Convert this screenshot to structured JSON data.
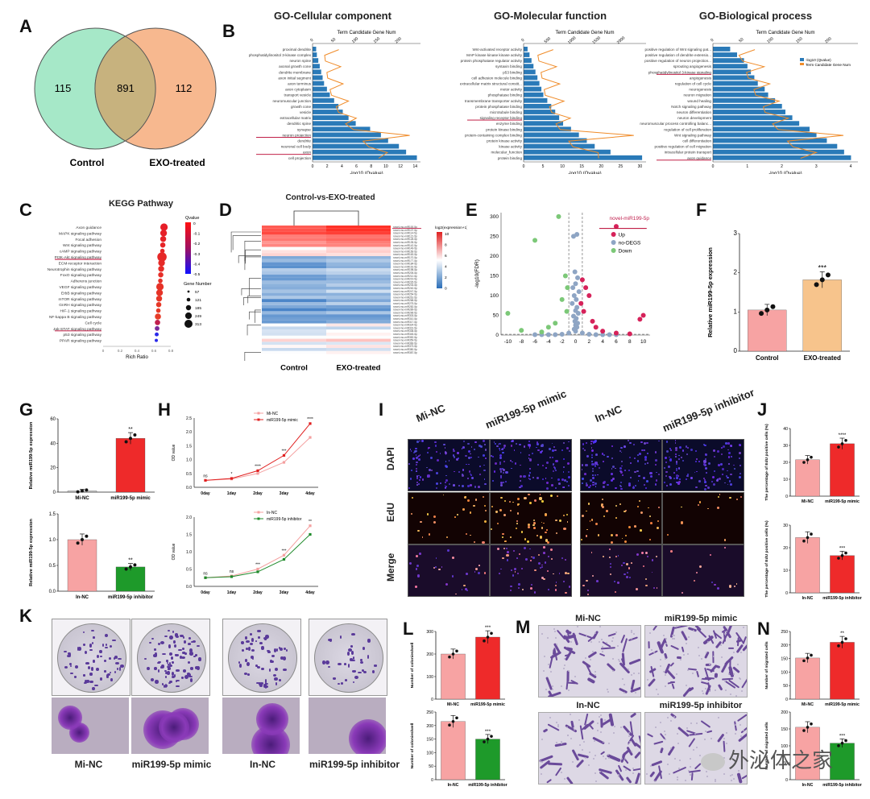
{
  "panels": {
    "A": "A",
    "B": "B",
    "C": "C",
    "D": "D",
    "E": "E",
    "F": "F",
    "G": "G",
    "H": "H",
    "I": "I",
    "J": "J",
    "K": "K",
    "L": "L",
    "M": "M",
    "N": "N"
  },
  "venn": {
    "left_count": "115",
    "overlap_count": "891",
    "right_count": "112",
    "left_label": "Control",
    "right_label": "EXO-treated",
    "left_color": "#a6e8c8",
    "right_color": "#f7b489"
  },
  "go": {
    "cc_title": "GO-Cellular component",
    "mf_title": "GO-Molecular function",
    "bp_title": "GO-Biological process",
    "top_axis_label": "Term Candidate Gene Num",
    "bottom_axis_label": "-log10  (Qvalue)",
    "legend_qvalue": "-log10 (Qvalue)",
    "legend_num": "Term Candidate Gene Num",
    "cc_terms": [
      "proximal dendrite",
      "phosphatidylinositol 3-kinase complex",
      "neuron spine",
      "axonal growth cone",
      "dendrite membrane",
      "axon initial segment",
      "axon terminus",
      "axon cytoplasm",
      "transport vesicle",
      "neuromuscular junction",
      "growth cone",
      "vesicle",
      "extracellular matrix",
      "dendritic spine",
      "synapse",
      "neuron projection",
      "dendrite",
      "neuronal cell body",
      "axon",
      "cell projection"
    ],
    "cc_q": [
      0.5,
      0.6,
      0.8,
      1,
      1.2,
      1.4,
      1.6,
      2,
      2.4,
      3,
      3.6,
      4.2,
      5,
      6,
      8,
      9.5,
      10.5,
      12,
      13,
      14.5
    ],
    "cc_top_ticks": [
      "0",
      "50",
      "100",
      "150",
      "200"
    ],
    "cc_bottom_ticks": [
      "0",
      "2",
      "4",
      "6",
      "8",
      "10",
      "12",
      "14"
    ],
    "mf_terms": [
      "Wnt-activated receptor activity",
      "MAP kinase kinase kinase activity",
      "protein phosphatase regulator activity",
      "syntaxin binding",
      "p53 binding",
      "cell adhesion molecule binding",
      "extracellular matrix structural constit...",
      "motor activity",
      "phosphatase binding",
      "transmembrane transporter activity",
      "protein phosphatase binding",
      "microtubule binding",
      "signaling receptor binding",
      "enzyme binding",
      "protein kinase binding",
      "protein-containing complex binding",
      "protein kinase activity",
      "kinase activity",
      "molecular_function",
      "protein binding"
    ],
    "mf_q": [
      1,
      1.5,
      2,
      2.5,
      3,
      3.5,
      4,
      4.5,
      5,
      6,
      7,
      8,
      9,
      10,
      12,
      14,
      16,
      18,
      22,
      30
    ],
    "mf_top_ticks": [
      "0",
      "500",
      "1000",
      "1500",
      "2000"
    ],
    "mf_bottom_ticks": [
      "0",
      "5",
      "10",
      "15",
      "20",
      "25",
      "30"
    ],
    "bp_terms": [
      "positive regulation of Wnt signaling pat...",
      "positive regulation of dendrite extensio...",
      "positive regulation of neuron projection...",
      "sprouting angiogenesis",
      "phosphatidylinositol 3-kinase signaling",
      "angiogenesis",
      "regulation of cell cycle",
      "neurogenesis",
      "neuron migration",
      "wound healing",
      "Notch signaling pathway",
      "neuron differentiation",
      "neuron development",
      "neuromuscular process controlling balanc...",
      "regulation of cell proliferation",
      "Wnt signaling pathway",
      "cell differentiation",
      "positive regulation of cell migration",
      "intracellular protein transport",
      "axon guidance"
    ],
    "bp_q": [
      0.5,
      0.7,
      0.9,
      1,
      1.1,
      1.2,
      1.3,
      1.5,
      1.6,
      1.8,
      2,
      2.1,
      2.3,
      2.5,
      2.8,
      3,
      3.3,
      3.6,
      3.8,
      4
    ],
    "bp_top_ticks": [
      "0",
      "50",
      "100",
      "150",
      "200"
    ],
    "bp_bottom_ticks": [
      "0",
      "1",
      "2",
      "3",
      "4"
    ]
  },
  "kegg": {
    "title": "KEGG Pathway",
    "xlabel": "Rich Ratio",
    "legend_q": "Qvalue",
    "legend_gene": "Gene Number",
    "q_ticks": [
      "0",
      "-0.1",
      "-0.2",
      "-0.3",
      "-0.4",
      "-0.5"
    ],
    "gene_ticks": [
      "57",
      "121",
      "185",
      "249",
      "313"
    ],
    "pathways": [
      "Axon guidance",
      "MAPK signaling pathway",
      "Focal adhesion",
      "Wnt signaling pathway",
      "cAMP signaling pathway",
      "PI3K-Akt signaling pathway",
      "ECM-receptor interaction",
      "Neurotrophin signaling pathway",
      "FoxO signaling pathway",
      "Adherens junction",
      "VEGF signaling pathway",
      "ErbB signaling pathway",
      "mTOR signaling pathway",
      "GnRH signaling pathway",
      "HIF-1 signaling pathway",
      "NF-kappa B signaling pathway",
      "Cell cycle",
      "Jak-STAT signaling pathway",
      "p53 signaling pathway",
      "PPAR signaling pathway"
    ],
    "x_ticks": [
      "0",
      "0.2",
      "0.4",
      "0.6",
      "0.8"
    ]
  },
  "heatmap": {
    "title": "Control-vs-EXO-treated",
    "legend_title": "log2(expression+1)",
    "scale": [
      "10",
      "8",
      "6",
      "4",
      "2",
      "0"
    ],
    "col_labels": [
      "Control",
      "EXO-treated"
    ]
  },
  "volcano": {
    "ylabel": "-log10(FDR)",
    "highlight": "novel-miR199-5p",
    "legend_up": "Up",
    "legend_no": "no-DEGS",
    "legend_down": "Down",
    "x_ticks": [
      "-10",
      "-8",
      "-6",
      "-4",
      "-2",
      "0",
      "2",
      "4",
      "6",
      "8",
      "10"
    ],
    "y_ticks": [
      "0",
      "50",
      "100",
      "150",
      "200",
      "250",
      "300"
    ]
  },
  "chart_data": [
    {
      "id": "F",
      "type": "bar",
      "categories": [
        "Control",
        "EXO-treated"
      ],
      "values": [
        1.05,
        1.82
      ],
      "ylabel": "Relative miR199-5p expression",
      "ylim": [
        0,
        3
      ],
      "significance": "***",
      "y_ticks": [
        "0",
        "1",
        "2",
        "3"
      ]
    },
    {
      "id": "G1",
      "type": "bar",
      "categories": [
        "Mi-NC",
        "miR199-5p mimic"
      ],
      "values": [
        1,
        44
      ],
      "ylabel": "Relative miR199-5p expression",
      "ylim": [
        0,
        60
      ],
      "significance": "**",
      "y_ticks": [
        "0",
        "20",
        "40",
        "60"
      ]
    },
    {
      "id": "G2",
      "type": "bar",
      "categories": [
        "In-NC",
        "miR199-5p inhibitor"
      ],
      "values": [
        1.0,
        0.47
      ],
      "ylabel": "Relative miR199-5p expression",
      "ylim": [
        0,
        1.5
      ],
      "significance": "**",
      "y_ticks": [
        "0.0",
        "0.5",
        "1.0",
        "1.5"
      ]
    },
    {
      "id": "H1",
      "type": "line",
      "x": [
        "0day",
        "1day",
        "2day",
        "3day",
        "4day"
      ],
      "series": [
        {
          "name": "Mi-NC",
          "values": [
            0.25,
            0.3,
            0.5,
            0.9,
            1.8
          ]
        },
        {
          "name": "miR199-5p mimic",
          "values": [
            0.25,
            0.32,
            0.6,
            1.15,
            2.3
          ]
        }
      ],
      "ylabel": "OD value",
      "ylim": [
        0,
        2.5
      ],
      "y_ticks": [
        "0.0",
        "0.5",
        "1.0",
        "1.5",
        "2.0",
        "2.5"
      ],
      "annotations": [
        "ns",
        "*",
        "****",
        "***",
        "****"
      ]
    },
    {
      "id": "H2",
      "type": "line",
      "x": [
        "0day",
        "1day",
        "2day",
        "3day",
        "4day"
      ],
      "series": [
        {
          "name": "In-NC",
          "values": [
            0.25,
            0.3,
            0.5,
            0.9,
            1.75
          ]
        },
        {
          "name": "miR199-5p inhibitor",
          "values": [
            0.25,
            0.28,
            0.42,
            0.78,
            1.5
          ]
        }
      ],
      "ylabel": "OD value",
      "ylim": [
        0,
        2.0
      ],
      "y_ticks": [
        "0.0",
        "0.5",
        "1.0",
        "1.5",
        "2.0"
      ],
      "annotations": [
        "ns",
        "ns",
        "***",
        "***",
        "**"
      ]
    },
    {
      "id": "J1",
      "type": "bar",
      "categories": [
        "Mi-NC",
        "miR199-5p mimic"
      ],
      "values": [
        21.5,
        31
      ],
      "ylabel": "The percentage of EdU positive cells (%)",
      "ylim": [
        0,
        40
      ],
      "significance": "****",
      "y_ticks": [
        "0",
        "10",
        "20",
        "30",
        "40"
      ]
    },
    {
      "id": "J2",
      "type": "bar",
      "categories": [
        "In-NC",
        "miR199-5p inhibitor"
      ],
      "values": [
        24.5,
        16.5
      ],
      "ylabel": "The percentage of EdU positive cells (%)",
      "ylim": [
        0,
        30
      ],
      "significance": "***",
      "y_ticks": [
        "0",
        "10",
        "20",
        "30"
      ]
    },
    {
      "id": "L1",
      "type": "bar",
      "categories": [
        "Mi-NC",
        "miR199-5p mimic"
      ],
      "values": [
        200,
        275
      ],
      "ylabel": "Number of colonies/well",
      "ylim": [
        0,
        300
      ],
      "significance": "***",
      "y_ticks": [
        "0",
        "100",
        "200",
        "300"
      ]
    },
    {
      "id": "L2",
      "type": "bar",
      "categories": [
        "In-NC",
        "miR199-5p inhibitor"
      ],
      "values": [
        215,
        150
      ],
      "ylabel": "Number of colonies/well",
      "ylim": [
        0,
        250
      ],
      "significance": "***",
      "y_ticks": [
        "0",
        "50",
        "100",
        "150",
        "200",
        "250"
      ]
    },
    {
      "id": "N1",
      "type": "bar",
      "categories": [
        "Mi-NC",
        "miR199-5p mimic"
      ],
      "values": [
        152,
        210
      ],
      "ylabel": "Number of migrated cells",
      "ylim": [
        0,
        250
      ],
      "significance": "**",
      "y_ticks": [
        "0",
        "50",
        "100",
        "150",
        "200",
        "250"
      ]
    },
    {
      "id": "N2",
      "type": "bar",
      "categories": [
        "In-NC",
        "miR199-5p inhibitor"
      ],
      "values": [
        155,
        108
      ],
      "ylabel": "Number of migrated cells",
      "ylim": [
        0,
        200
      ],
      "significance": "***",
      "y_ticks": [
        "0",
        "50",
        "100",
        "150",
        "200"
      ]
    }
  ],
  "I": {
    "col_mi_nc": "Mi-NC",
    "col_mimic": "miR199-5p mimic",
    "col_in_nc": "In-NC",
    "col_inhib": "miR199-5p inhibitor",
    "row_dapi": "DAPI",
    "row_edu": "EdU",
    "row_merge": "Merge"
  },
  "K": {
    "l1": "Mi-NC",
    "l2": "miR199-5p mimic",
    "l3": "In-NC",
    "l4": "miR199-5p inhibitor"
  },
  "M": {
    "t1": "Mi-NC",
    "t2": "miR199-5p mimic",
    "t3": "In-NC",
    "t4": "miR199-5p inhibitor"
  },
  "watermark": "外泌体之家",
  "colors": {
    "pink": "#f7a3a3",
    "red": "#ee2a2a",
    "orange": "#f7c48c",
    "green": "#1e9a2a",
    "blue": "#2a7ab8",
    "line_orange": "#f08c2a"
  }
}
